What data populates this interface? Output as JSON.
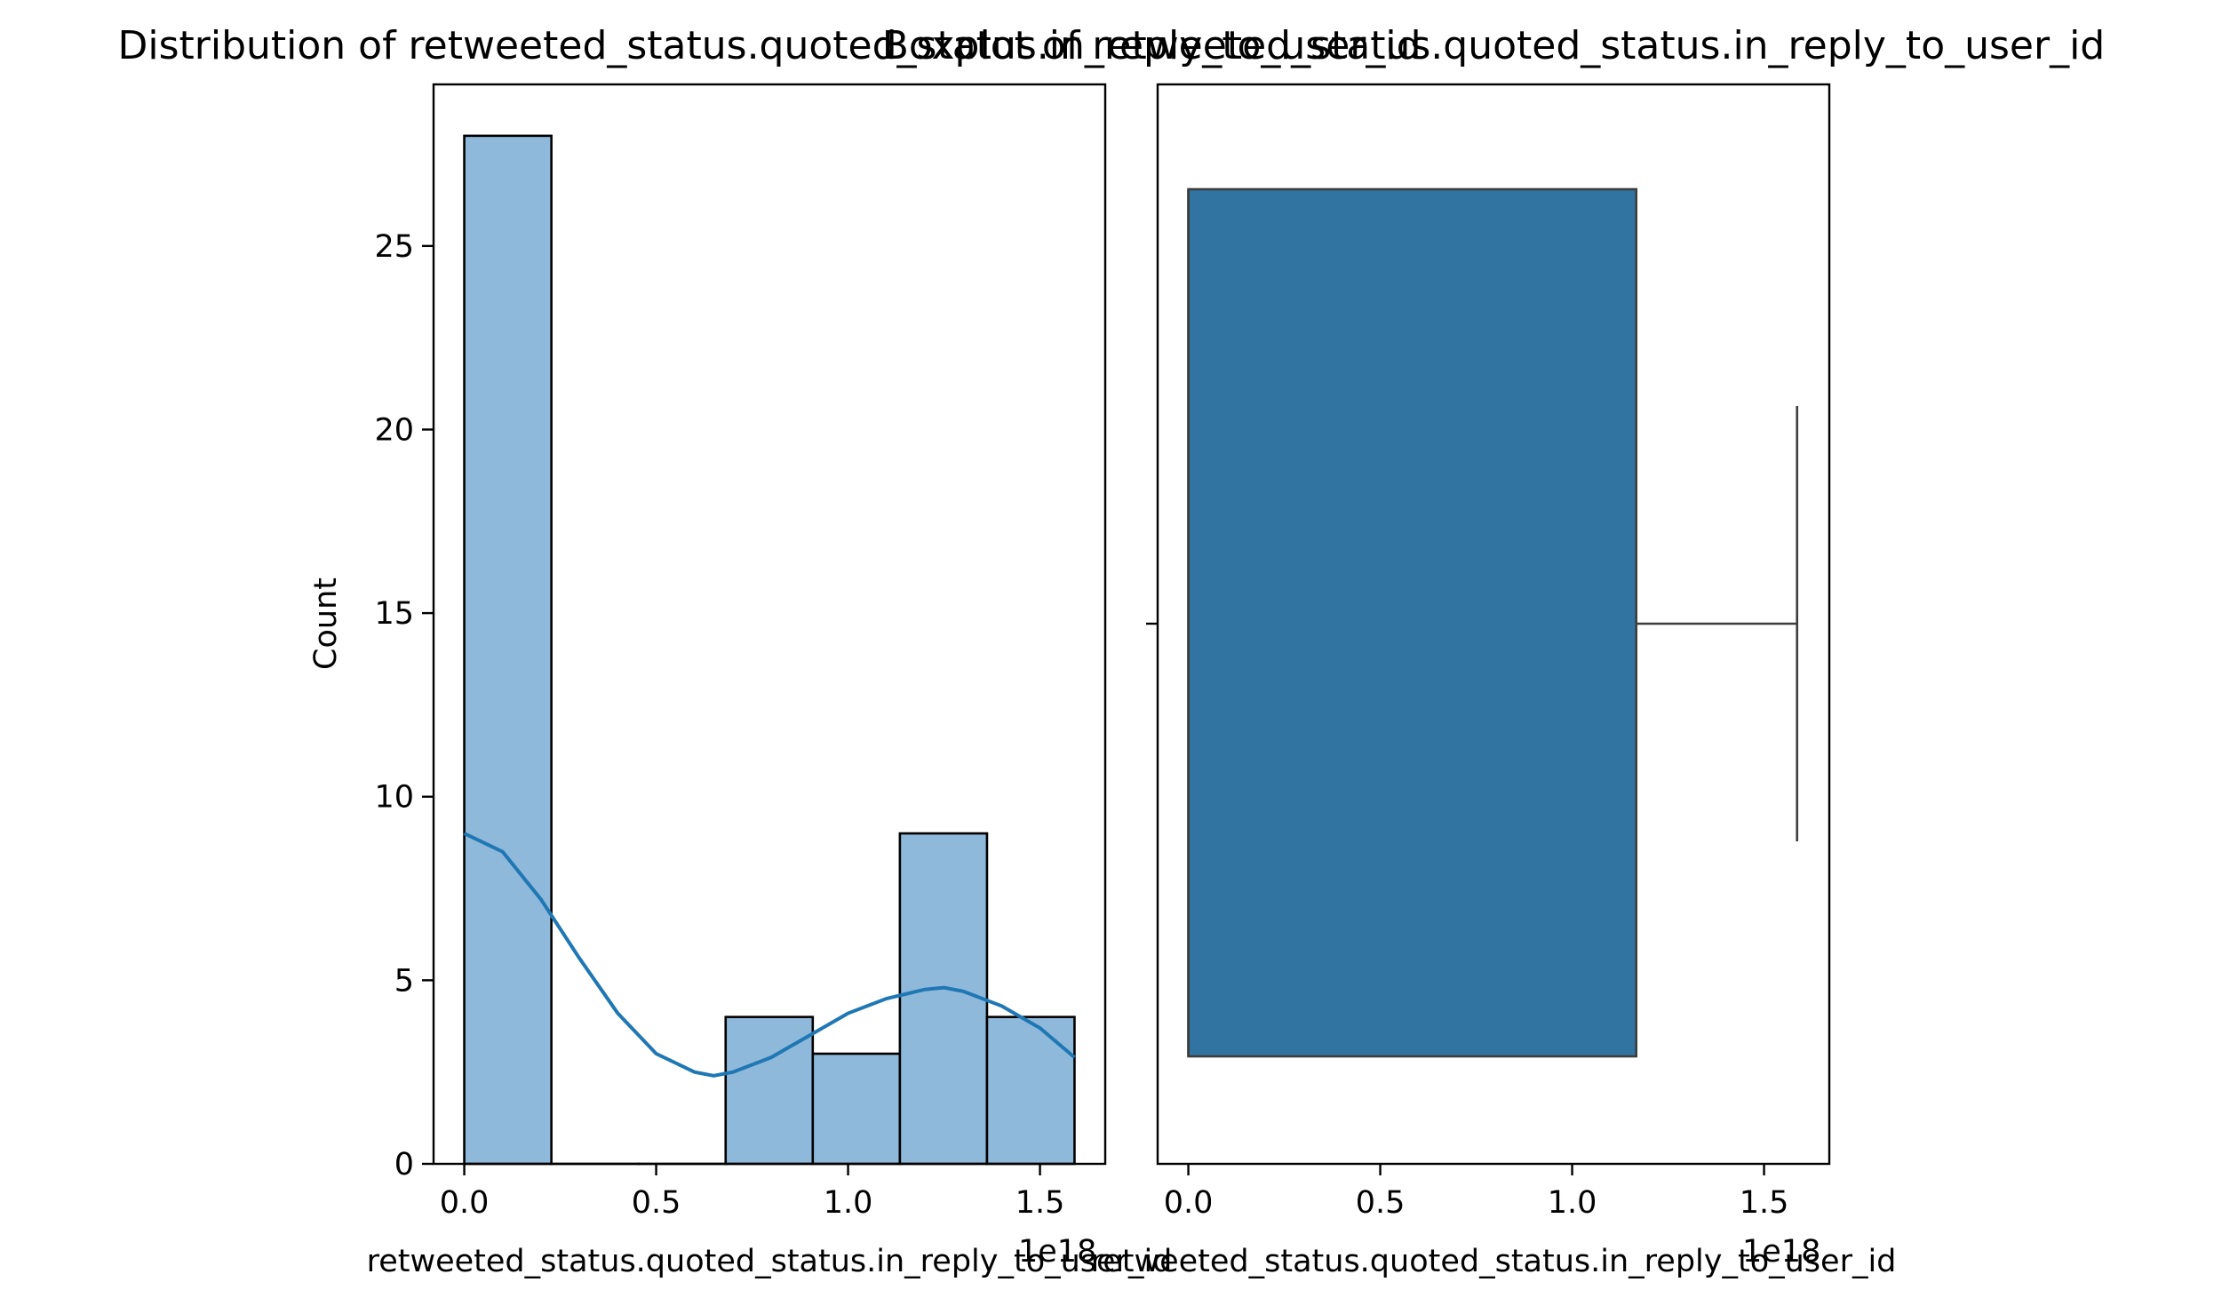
{
  "colors": {
    "hist_fill": "#8fb9da",
    "kde_line": "#1f77b4",
    "box_fill": "#3274a1",
    "box_edge": "#3d3d3d",
    "axis": "#000000"
  },
  "chart_data": [
    {
      "type": "histogram",
      "title": "Distribution of retweeted_status.quoted_status.in_reply_to_user_id",
      "xlabel": "retweeted_status.quoted_status.in_reply_to_user_id",
      "ylabel": "Count",
      "x_offset_label": "1e18",
      "xlim": [
        -0.08,
        1.67
      ],
      "ylim": [
        0,
        29.4
      ],
      "x_ticks": [
        0.0,
        0.5,
        1.0,
        1.5
      ],
      "x_tick_labels": [
        "0.0",
        "0.5",
        "1.0",
        "1.5"
      ],
      "y_ticks": [
        0,
        5,
        10,
        15,
        20,
        25
      ],
      "y_tick_labels": [
        "0",
        "5",
        "10",
        "15",
        "20",
        "25"
      ],
      "bin_edges": [
        0.0,
        0.227,
        0.454,
        0.681,
        0.908,
        1.135,
        1.362,
        1.59
      ],
      "counts": [
        28,
        0,
        0,
        4,
        3,
        9,
        4
      ],
      "kde": {
        "x": [
          0.0,
          0.1,
          0.2,
          0.3,
          0.4,
          0.5,
          0.6,
          0.65,
          0.7,
          0.8,
          0.9,
          1.0,
          1.1,
          1.2,
          1.25,
          1.3,
          1.4,
          1.5,
          1.59
        ],
        "y": [
          9.0,
          8.5,
          7.2,
          5.6,
          4.1,
          3.0,
          2.5,
          2.4,
          2.5,
          2.9,
          3.5,
          4.1,
          4.5,
          4.75,
          4.8,
          4.7,
          4.3,
          3.7,
          2.9
        ]
      }
    },
    {
      "type": "boxplot",
      "title": "Boxplot of retweeted_status.quoted_status.in_reply_to_user_id",
      "xlabel": "retweeted_status.quoted_status.in_reply_to_user_id",
      "x_offset_label": "1e18",
      "xlim": [
        -0.08,
        1.67
      ],
      "x_ticks": [
        0.0,
        0.5,
        1.0,
        1.5
      ],
      "x_tick_labels": [
        "0.0",
        "0.5",
        "1.0",
        "1.5"
      ],
      "q1": 0.0,
      "median": 0.0,
      "q3": 1.167,
      "whisker_low": 0.0,
      "whisker_high": 1.586
    }
  ]
}
